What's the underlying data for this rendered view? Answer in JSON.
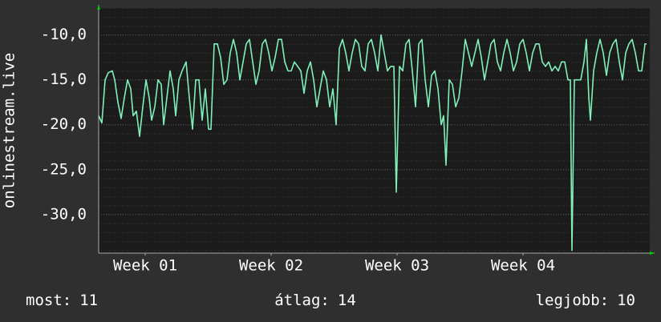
{
  "chart_data": {
    "type": "line",
    "ylabel": "onlinestream.live",
    "xlim": [
      0,
      687
    ],
    "ylim": [
      -34.3,
      -7
    ],
    "xticks": [
      {
        "value": 58,
        "label": "Week 01"
      },
      {
        "value": 215,
        "label": "Week 02"
      },
      {
        "value": 372,
        "label": "Week 03"
      },
      {
        "value": 529,
        "label": "Week 04"
      }
    ],
    "yticks": [
      {
        "value": -10,
        "label": "-10,0"
      },
      {
        "value": -15,
        "label": "-15,0"
      },
      {
        "value": -20,
        "label": "-20,0"
      },
      {
        "value": -25,
        "label": "-25,0"
      },
      {
        "value": -30,
        "label": "-30,0"
      }
    ],
    "grid": true,
    "x": [
      0,
      4,
      8,
      12,
      17,
      20,
      24,
      28,
      32,
      36,
      40,
      43,
      47,
      51,
      55,
      59,
      63,
      66,
      70,
      74,
      78,
      81,
      85,
      89,
      93,
      96,
      100,
      104,
      109,
      113,
      117,
      121,
      125,
      129,
      133,
      137,
      140,
      144,
      148,
      152,
      156,
      160,
      164,
      168,
      172,
      176,
      180,
      184,
      188,
      192,
      196,
      200,
      204,
      208,
      212,
      216,
      220,
      224,
      228,
      232,
      236,
      240,
      244,
      248,
      252,
      256,
      260,
      264,
      268,
      272,
      276,
      280,
      284,
      288,
      292,
      296,
      300,
      304,
      308,
      312,
      316,
      320,
      324,
      328,
      332,
      336,
      340,
      344,
      348,
      352,
      356,
      360,
      364,
      368,
      371,
      375,
      379,
      383,
      387,
      391,
      395,
      399,
      403,
      407,
      411,
      415,
      419,
      423,
      427,
      430,
      433,
      437,
      441,
      445,
      449,
      453,
      457,
      461,
      465,
      469,
      473,
      477,
      481,
      485,
      489,
      493,
      497,
      501,
      505,
      509,
      513,
      517,
      521,
      525,
      529,
      533,
      537,
      541,
      545,
      549,
      553,
      557,
      561,
      565,
      569,
      573,
      577,
      581,
      585,
      588,
      590,
      593,
      597,
      601,
      605,
      608,
      611,
      613,
      617,
      621,
      625,
      629,
      633,
      637,
      641,
      645,
      649,
      653,
      657,
      661,
      665,
      669,
      673,
      677,
      681,
      683
    ],
    "series": [
      {
        "name": "onlinestream.live",
        "color": "#80f0b8",
        "values": [
          -19,
          -19.8,
          -15,
          -14.2,
          -14,
          -15,
          -17.5,
          -19.3,
          -17,
          -15,
          -16,
          -19,
          -18.5,
          -21.3,
          -18,
          -15,
          -17,
          -19.5,
          -18,
          -15,
          -15.5,
          -20,
          -17,
          -14,
          -16,
          -19,
          -15,
          -14,
          -13,
          -17,
          -20.5,
          -15,
          -15,
          -19.5,
          -16,
          -20.5,
          -20.5,
          -11,
          -11,
          -12.5,
          -15.5,
          -15,
          -12,
          -10.5,
          -12,
          -15,
          -13,
          -11,
          -10.5,
          -13,
          -15.5,
          -14,
          -11,
          -10.5,
          -12,
          -14,
          -12.5,
          -10.5,
          -10.5,
          -13,
          -14,
          -14,
          -13,
          -13.5,
          -14,
          -16.5,
          -14,
          -13,
          -15,
          -18,
          -16,
          -14,
          -15,
          -18,
          -16,
          -20,
          -11.5,
          -10.5,
          -12,
          -14,
          -12,
          -10.5,
          -11,
          -13.5,
          -14,
          -11,
          -10.5,
          -12,
          -14,
          -10,
          -12,
          -14,
          -13.5,
          -13.5,
          -27.5,
          -13.5,
          -14,
          -11,
          -10.5,
          -14,
          -18,
          -11,
          -10.5,
          -15,
          -18,
          -14.5,
          -14,
          -16,
          -20,
          -19,
          -24.5,
          -15,
          -15.5,
          -18,
          -17,
          -14,
          -10.5,
          -12,
          -13.5,
          -12,
          -10.5,
          -12.5,
          -15,
          -13,
          -11,
          -10.5,
          -13,
          -14,
          -12,
          -10.5,
          -12,
          -14,
          -13,
          -11,
          -10.5,
          -12,
          -14,
          -12,
          -11,
          -11,
          -13,
          -13.5,
          -13,
          -14,
          -13.5,
          -14,
          -13,
          -13,
          -15,
          -15,
          -34,
          -15,
          -15,
          -15,
          -13,
          -10.5,
          -17,
          -19.5,
          -14,
          -12,
          -10.5,
          -12,
          -14.5,
          -12,
          -11,
          -10.5,
          -13,
          -15,
          -12,
          -11,
          -10.5,
          -12,
          -14,
          -14,
          -11,
          -11
        ]
      }
    ],
    "stats": [
      {
        "label": "most:",
        "value": 11
      },
      {
        "label": "átlag:",
        "value": 14
      },
      {
        "label": "legjobb:",
        "value": 10
      }
    ]
  }
}
